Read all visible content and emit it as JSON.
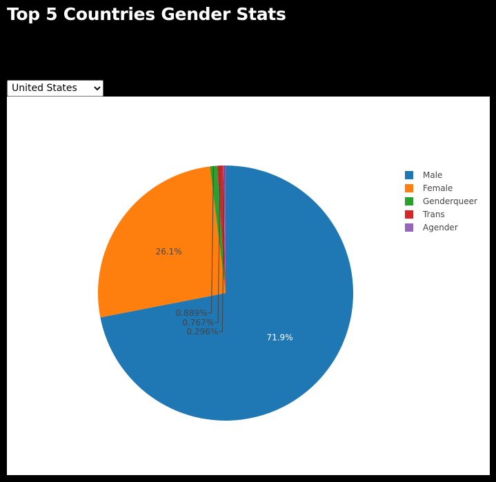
{
  "page": {
    "title": "Top 5 Countries Gender Stats"
  },
  "country_select": {
    "selected": "United States"
  },
  "colors": {
    "Male": "#1f77b4",
    "Female": "#ff7f0e",
    "Genderqueer": "#2ca02c",
    "Trans": "#d62728",
    "Agender": "#9467bd"
  },
  "chart_data": {
    "type": "pie",
    "title": "",
    "labels": [
      "Male",
      "Female",
      "Genderqueer",
      "Trans",
      "Agender"
    ],
    "values": [
      71.9,
      26.1,
      0.889,
      0.767,
      0.296
    ],
    "value_labels": [
      "71.9%",
      "26.1%",
      "0.889%",
      "0.767%",
      "0.296%"
    ],
    "legend_position": "top-right",
    "direction": "clockwise",
    "start": "12 o'clock"
  }
}
